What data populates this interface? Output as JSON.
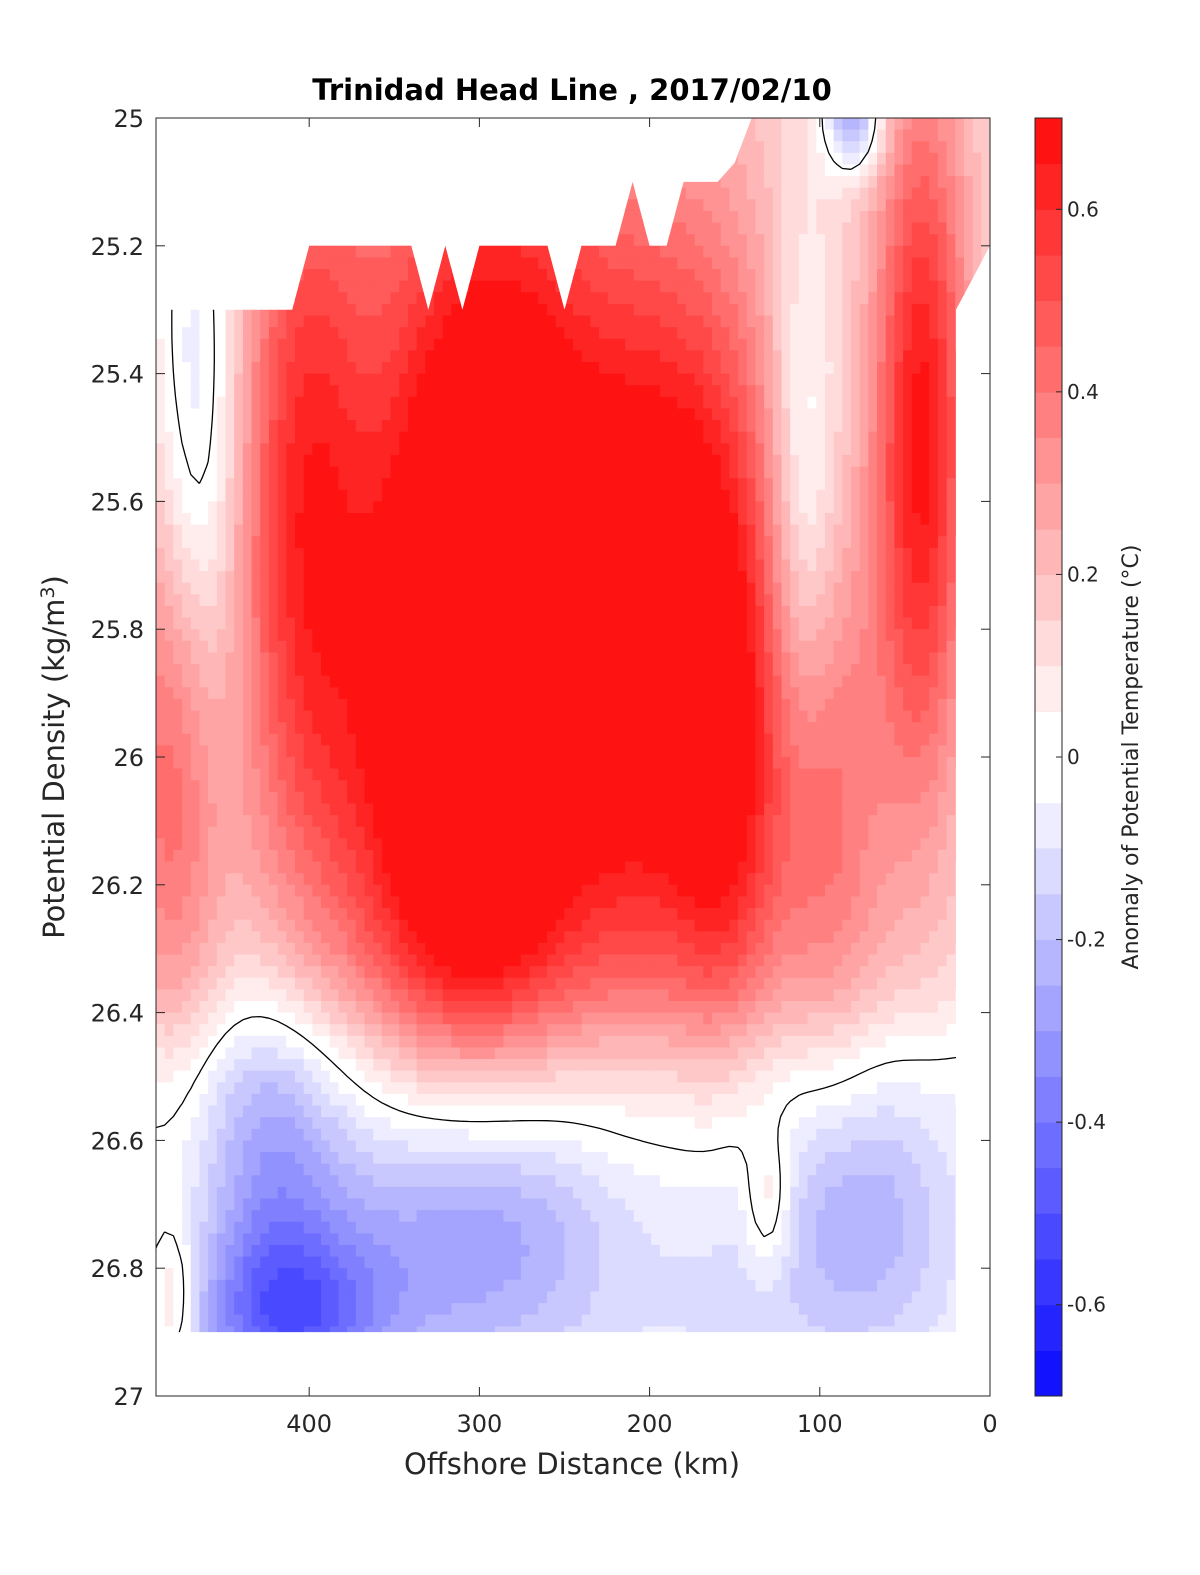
{
  "chart_data": {
    "type": "heatmap",
    "subtype": "filled-contour",
    "title": "Trinidad Head Line , 2017/02/10",
    "xlabel": "Offshore Distance (km)",
    "ylabel": "Potential Density (kg/m",
    "ylabel_superscript": "3",
    "ylabel_close": ")",
    "colorbar_label": "Anomaly of Potential Temperature (°C)",
    "xlim": [
      490,
      0
    ],
    "x_reversed": true,
    "ylim": [
      25,
      27
    ],
    "y_reversed": true,
    "x_ticks": [
      400,
      300,
      200,
      100,
      0
    ],
    "x_tick_labels": [
      "400",
      "300",
      "200",
      "100",
      "0"
    ],
    "y_ticks": [
      25,
      25.2,
      25.4,
      25.6,
      25.8,
      26,
      26.2,
      26.4,
      26.6,
      26.8,
      27
    ],
    "y_tick_labels": [
      "25",
      "25.2",
      "25.4",
      "25.6",
      "25.8",
      "26",
      "26.2",
      "26.4",
      "26.6",
      "26.8",
      "27"
    ],
    "colorbar_range": [
      -0.7,
      0.7
    ],
    "colorbar_ticks": [
      0.6,
      0.4,
      0.2,
      0,
      -0.2,
      -0.4,
      -0.6
    ],
    "colorbar_tick_labels": [
      "0.6",
      "0.4",
      "0.2",
      "0",
      "-0.2",
      "-0.4",
      "-0.6"
    ],
    "contour_step": 0.05,
    "colormap": {
      "negative": "#0000ff",
      "zero": "#ffffff",
      "positive": "#ff0000"
    },
    "zero_contour_color": "#000000",
    "x_columns": [
      490,
      480,
      470,
      460,
      450,
      440,
      430,
      420,
      410,
      400,
      390,
      380,
      370,
      360,
      350,
      340,
      330,
      320,
      310,
      300,
      290,
      280,
      270,
      260,
      250,
      240,
      230,
      220,
      210,
      200,
      190,
      180,
      170,
      160,
      150,
      140,
      130,
      120,
      110,
      100,
      90,
      80,
      70,
      60,
      50,
      40,
      30,
      20
    ],
    "features": [
      {
        "x": 465,
        "y": 25.55,
        "sx": 18,
        "sy": 0.38,
        "value": -0.3
      },
      {
        "x": 478,
        "y": 26.0,
        "sx": 22,
        "sy": 0.32,
        "value": 0.38
      },
      {
        "x": 405,
        "y": 25.6,
        "sx": 28,
        "sy": 0.45,
        "value": 0.42
      },
      {
        "x": 295,
        "y": 25.75,
        "sx": 55,
        "sy": 0.55,
        "value": 0.78
      },
      {
        "x": 320,
        "y": 26.1,
        "sx": 45,
        "sy": 0.3,
        "value": 0.25
      },
      {
        "x": 180,
        "y": 25.8,
        "sx": 45,
        "sy": 0.45,
        "value": 0.6
      },
      {
        "x": 155,
        "y": 26.1,
        "sx": 20,
        "sy": 0.3,
        "value": 0.2
      },
      {
        "x": 40,
        "y": 25.5,
        "sx": 20,
        "sy": 0.4,
        "value": 0.55
      },
      {
        "x": 110,
        "y": 25.6,
        "sx": 15,
        "sy": 0.3,
        "value": -0.25
      },
      {
        "x": 95,
        "y": 26.1,
        "sx": 25,
        "sy": 0.3,
        "value": 0.25
      },
      {
        "x": 80,
        "y": 25.0,
        "sx": 12,
        "sy": 0.06,
        "value": -0.4
      },
      {
        "x": 420,
        "y": 26.62,
        "sx": 30,
        "sy": 0.2,
        "value": -0.25
      },
      {
        "x": 410,
        "y": 26.88,
        "sx": 40,
        "sy": 0.1,
        "value": -0.35
      },
      {
        "x": 300,
        "y": 26.72,
        "sx": 60,
        "sy": 0.18,
        "value": -0.4
      },
      {
        "x": 150,
        "y": 26.72,
        "sx": 40,
        "sy": 0.25,
        "value": -0.1
      },
      {
        "x": 130,
        "y": 26.7,
        "sx": 10,
        "sy": 0.08,
        "value": 0.18
      },
      {
        "x": 75,
        "y": 26.72,
        "sx": 35,
        "sy": 0.15,
        "value": -0.2
      },
      {
        "x": 480,
        "y": 26.85,
        "sx": 10,
        "sy": 0.08,
        "value": 0.2
      }
    ],
    "baseline": {
      "upper_value": 0.12,
      "lower_value": -0.05,
      "transition_density": 26.42
    },
    "data_bottom_density": 26.9,
    "data_top_density": [
      [
        490,
        25.3
      ],
      [
        410,
        25.3
      ],
      [
        400,
        25.2
      ],
      [
        340,
        25.2
      ],
      [
        330,
        25.3
      ],
      [
        320,
        25.2
      ],
      [
        310,
        25.3
      ],
      [
        300,
        25.2
      ],
      [
        260,
        25.2
      ],
      [
        250,
        25.3
      ],
      [
        240,
        25.2
      ],
      [
        220,
        25.2
      ],
      [
        210,
        25.1
      ],
      [
        200,
        25.2
      ],
      [
        190,
        25.2
      ],
      [
        180,
        25.1
      ],
      [
        160,
        25.1
      ],
      [
        150,
        25.07
      ],
      [
        140,
        25.0
      ],
      [
        90,
        25.0
      ],
      [
        0,
        25.0
      ]
    ],
    "data_right_edge_km": 20
  }
}
